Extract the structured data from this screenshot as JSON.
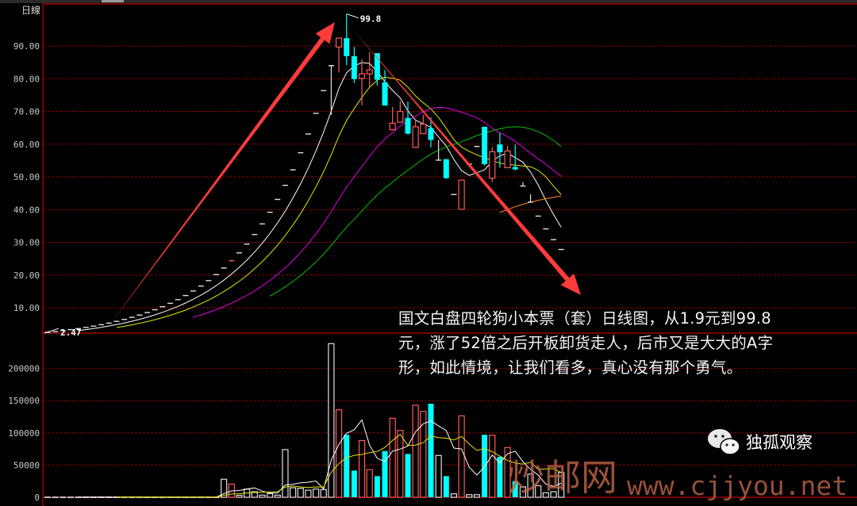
{
  "period_label": "日線",
  "annotation": [
    "国文白盘四轮狗小本票（套）日线图，从1.9元到99.8",
    "元，涨了52倍之后开板卸货走人，后市又是大大的A字",
    "形，如此情境，让我们看多，真心没有那个勇气。"
  ],
  "watermark": {
    "site_name": "炒邮网",
    "url": "www.cjjyou.net"
  },
  "brand": {
    "name": "独孤观察",
    "icon": "wechat-icon"
  },
  "colors": {
    "up": "#ff5a5a",
    "down": "#00ffff",
    "flat": "#e0e0e0",
    "grid": "#8b0000",
    "border": "#a00000",
    "arrow": "#ff3b3b"
  },
  "chart_data": [
    {
      "type": "candlestick",
      "title": "",
      "ylim": [
        0,
        100
      ],
      "yticks": [
        "90.00",
        "80.00",
        "70.00",
        "60.00",
        "50.00",
        "40.00",
        "30.00",
        "20.00",
        "10.00"
      ],
      "ytick_values": [
        90,
        80,
        70,
        60,
        50,
        40,
        30,
        20,
        10
      ],
      "grid": true,
      "high_label": "99.8",
      "low_label": "2.47",
      "candles_ohlc": [
        [
          2.47,
          2.47,
          2.47,
          2.47
        ],
        [
          2.72,
          2.72,
          2.72,
          2.72
        ],
        [
          2.99,
          2.99,
          2.99,
          2.99
        ],
        [
          3.29,
          3.29,
          3.29,
          3.29
        ],
        [
          3.62,
          3.62,
          3.62,
          3.62
        ],
        [
          3.98,
          3.98,
          3.98,
          3.98
        ],
        [
          4.38,
          4.38,
          4.38,
          4.38
        ],
        [
          4.81,
          4.81,
          4.81,
          4.81
        ],
        [
          5.29,
          5.29,
          5.29,
          5.29
        ],
        [
          5.82,
          5.82,
          5.82,
          5.82
        ],
        [
          6.41,
          6.41,
          6.41,
          6.41
        ],
        [
          7.05,
          7.05,
          7.05,
          7.05
        ],
        [
          7.75,
          7.75,
          7.75,
          7.75
        ],
        [
          8.53,
          8.53,
          8.53,
          8.53
        ],
        [
          9.38,
          9.38,
          9.38,
          9.38
        ],
        [
          10.32,
          10.32,
          10.32,
          10.32
        ],
        [
          11.35,
          11.35,
          11.35,
          11.35
        ],
        [
          12.48,
          12.48,
          12.48,
          12.48
        ],
        [
          13.73,
          13.73,
          13.73,
          13.73
        ],
        [
          15.11,
          15.11,
          15.11,
          15.11
        ],
        [
          16.62,
          16.62,
          16.62,
          16.62
        ],
        [
          18.28,
          18.28,
          18.28,
          18.28
        ],
        [
          20.11,
          20.11,
          20.11,
          20.11
        ],
        [
          22.12,
          22.12,
          22.12,
          22.12
        ],
        [
          24.2,
          24.4,
          24.2,
          24.4
        ],
        [
          26.76,
          26.76,
          26.76,
          26.76
        ],
        [
          29.44,
          29.44,
          29.44,
          29.44
        ],
        [
          32.38,
          32.38,
          32.38,
          32.38
        ],
        [
          35.62,
          35.62,
          35.62,
          35.62
        ],
        [
          39.18,
          39.18,
          39.18,
          39.18
        ],
        [
          43.1,
          43.1,
          43.1,
          43.1
        ],
        [
          47.41,
          47.41,
          47.41,
          47.41
        ],
        [
          52.15,
          52.15,
          52.15,
          52.15
        ],
        [
          57.37,
          57.37,
          57.37,
          57.37
        ],
        [
          63.11,
          63.11,
          63.11,
          63.11
        ],
        [
          69.42,
          69.42,
          69.42,
          69.42
        ],
        [
          76.36,
          76.36,
          76.36,
          76.36
        ],
        [
          83.99,
          83.99,
          69.0,
          83.99
        ],
        [
          89.7,
          92.4,
          81.9,
          92.4
        ],
        [
          92.4,
          99.8,
          84.1,
          86.9
        ],
        [
          86.9,
          89.7,
          78.7,
          79.9
        ],
        [
          80.1,
          86.0,
          71.8,
          81.5
        ],
        [
          81.5,
          88.1,
          77.5,
          82.7
        ],
        [
          87.8,
          87.8,
          77.9,
          79.7
        ],
        [
          78.9,
          82.7,
          71.8,
          71.8
        ],
        [
          64.4,
          71.4,
          64.2,
          66.4
        ],
        [
          66.7,
          73.2,
          66.7,
          70.0
        ],
        [
          68.0,
          73.0,
          62.9,
          63.2
        ],
        [
          59.0,
          67.4,
          59.0,
          65.3
        ],
        [
          63.2,
          69.0,
          63.2,
          66.1
        ],
        [
          64.9,
          68.2,
          59.0,
          61.3
        ],
        [
          55.1,
          61.3,
          55.1,
          55.1
        ],
        [
          55.4,
          55.4,
          49.4,
          49.6
        ],
        [
          44.6,
          44.6,
          44.6,
          44.6
        ],
        [
          40.1,
          49.0,
          40.1,
          49.0
        ],
        [
          53.9,
          53.9,
          53.9,
          53.9
        ],
        [
          59.3,
          59.3,
          59.3,
          59.3
        ],
        [
          65.3,
          65.3,
          53.5,
          53.9
        ],
        [
          49.6,
          59.1,
          48.4,
          57.7
        ],
        [
          59.9,
          63.5,
          52.8,
          57.5
        ],
        [
          52.8,
          59.5,
          52.8,
          57.9
        ],
        [
          53.0,
          59.9,
          52.0,
          52.3
        ],
        [
          47.2,
          48.4,
          47.2,
          47.2
        ],
        [
          42.3,
          44.7,
          42.3,
          42.3
        ],
        [
          38.0,
          38.0,
          38.0,
          38.0
        ],
        [
          34.1,
          34.1,
          34.1,
          34.1
        ],
        [
          30.8,
          30.8,
          30.8,
          30.8
        ],
        [
          27.8,
          27.8,
          27.8,
          27.8
        ]
      ],
      "moving_averages": [
        {
          "period": 5,
          "color": "#ffffff"
        },
        {
          "period": 10,
          "color": "#e6e600"
        },
        {
          "period": 20,
          "color": "#e000e0"
        },
        {
          "period": 30,
          "color": "#00c000"
        },
        {
          "period": 60,
          "color": "#ff8c1a"
        }
      ]
    },
    {
      "type": "bar",
      "title": "",
      "ylim": [
        0,
        200000
      ],
      "yticks": [
        "200000",
        "150000",
        "100000",
        "50000",
        "0"
      ],
      "ytick_values": [
        200000,
        150000,
        100000,
        50000,
        0
      ],
      "grid": true,
      "volumes": [
        300,
        300,
        300,
        300,
        300,
        300,
        300,
        300,
        300,
        300,
        300,
        300,
        300,
        300,
        300,
        300,
        300,
        300,
        300,
        300,
        300,
        300,
        300,
        28000,
        20500,
        3000,
        12700,
        8600,
        3300,
        5700,
        3300,
        74000,
        14800,
        14000,
        11000,
        12700,
        12000,
        238500,
        135800,
        97000,
        41500,
        88000,
        43000,
        32800,
        71800,
        122700,
        103800,
        67300,
        142900,
        133400,
        145300,
        64900,
        32800,
        5300,
        126500,
        4000,
        4000,
        97000,
        96400,
        62800,
        77200,
        25000,
        16000,
        36000,
        18000,
        7000,
        8600,
        38500
      ],
      "moving_averages": [
        {
          "period": 5,
          "color": "#ffffff"
        },
        {
          "period": 10,
          "color": "#e6e600"
        }
      ]
    }
  ]
}
